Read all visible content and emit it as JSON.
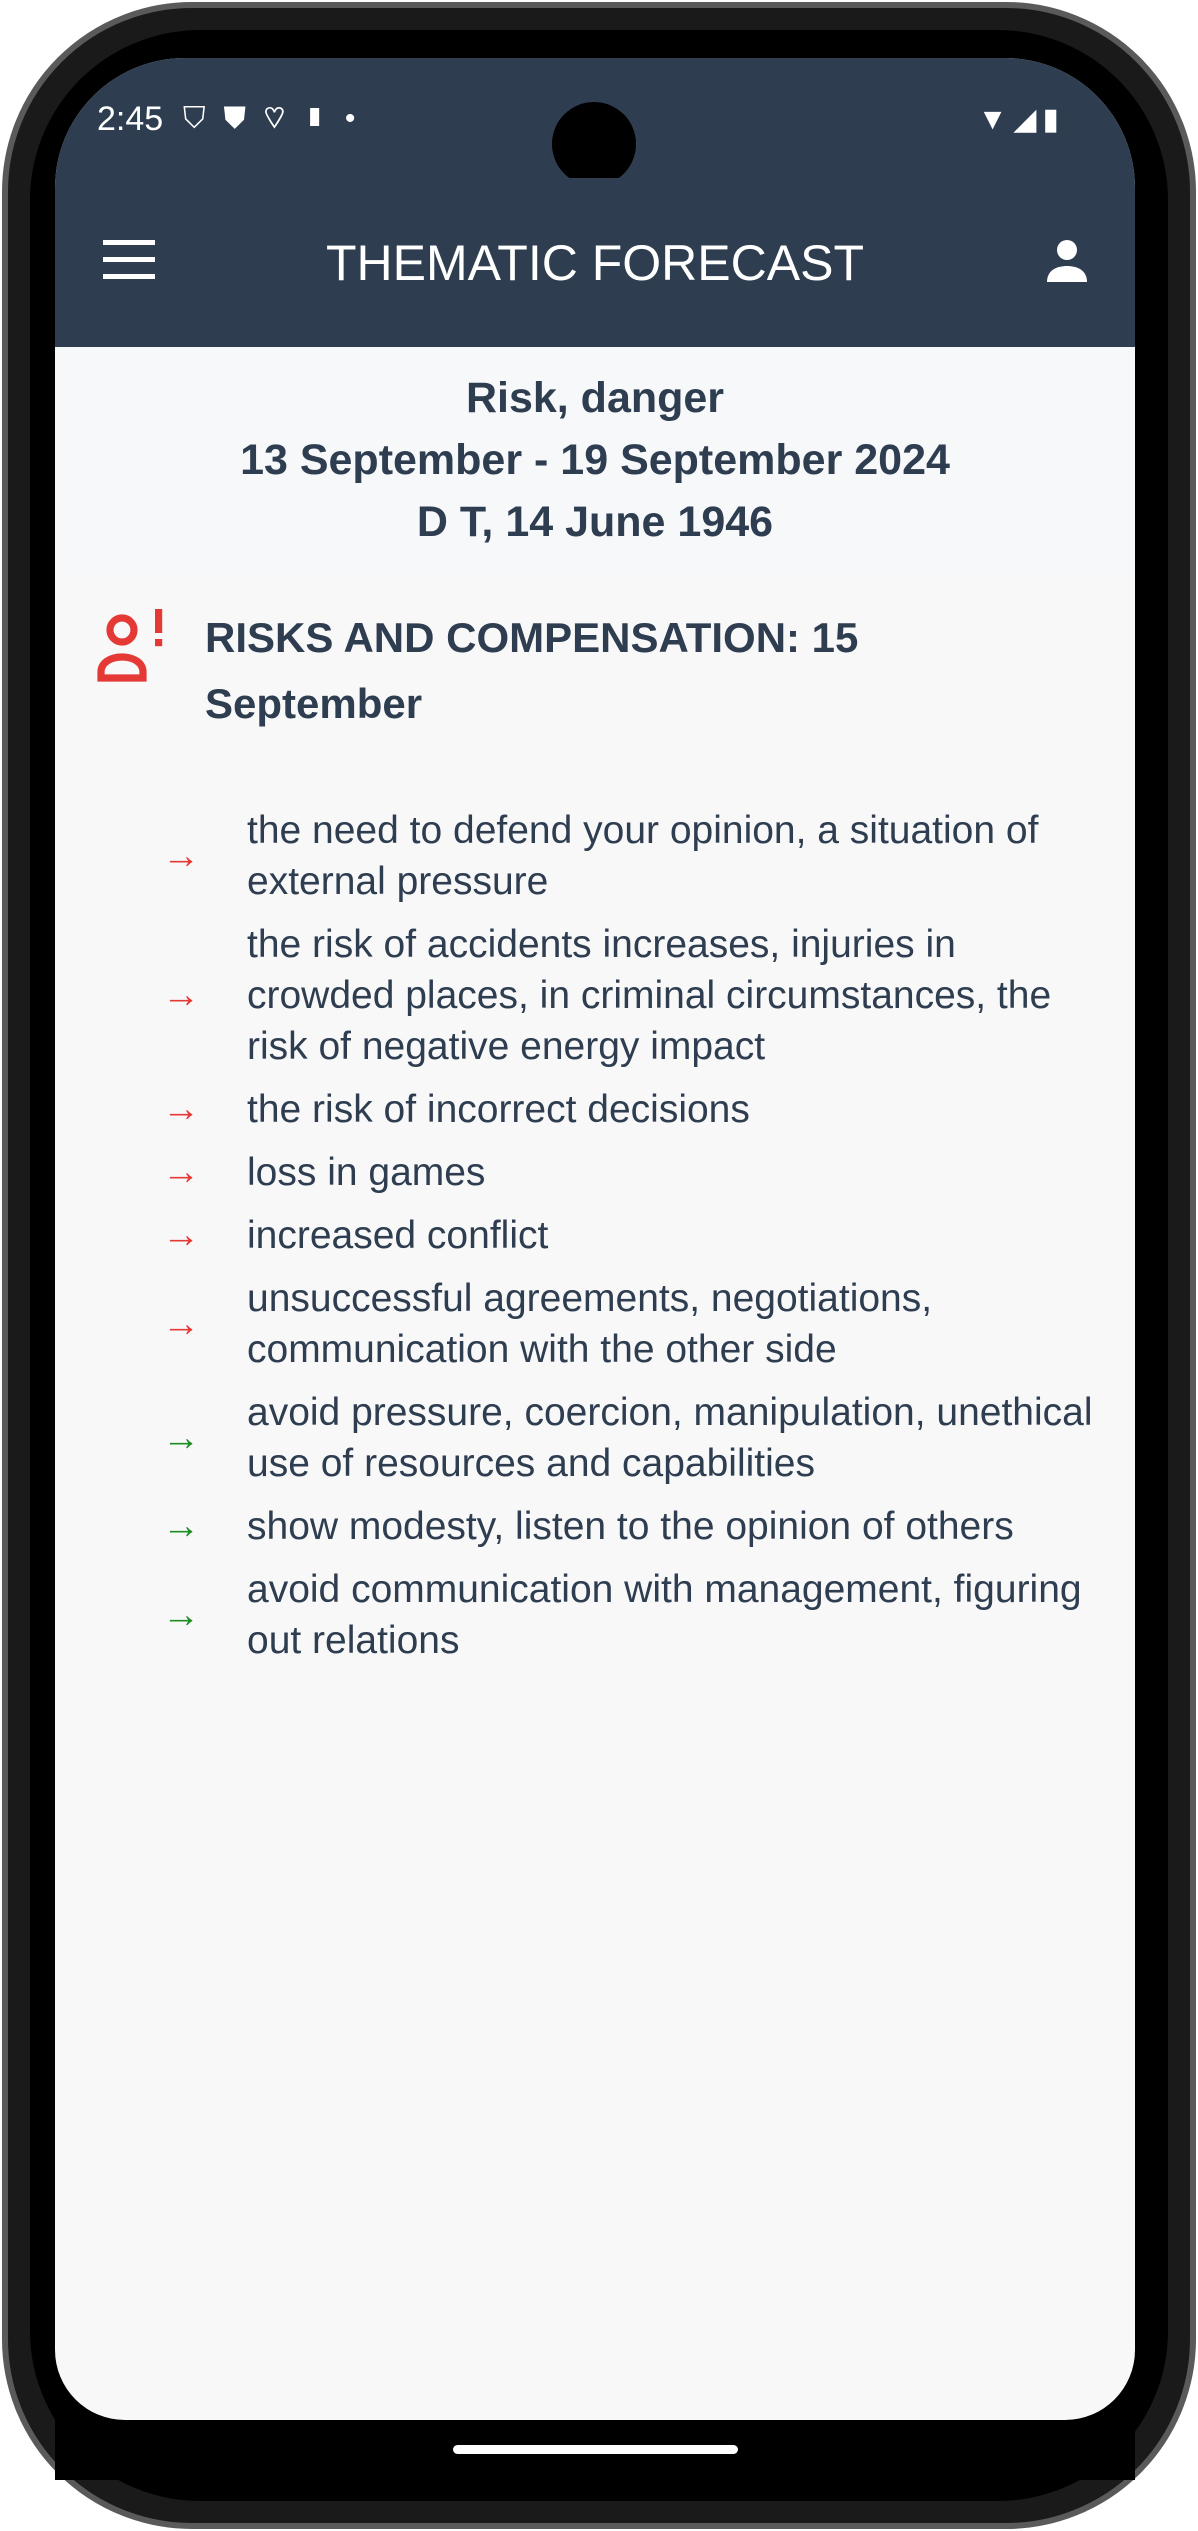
{
  "status_bar": {
    "time": "2:45"
  },
  "app_bar": {
    "title": "THEMATIC FORECAST"
  },
  "header": {
    "topic": "Risk, danger",
    "period": "13 September - 19 September 2024",
    "person": "D T, 14 June 1946"
  },
  "section": {
    "title": "RISKS AND COMPENSATION: 15 September"
  },
  "colors": {
    "risk": "#e53935",
    "advice": "#1e8e1e",
    "primary": "#2e3d50"
  },
  "items": [
    {
      "type": "risk",
      "text": "the need to defend your opinion, a situation of external pressure"
    },
    {
      "type": "risk",
      "text": "the risk of accidents increases, injuries in crowded places, in criminal circumstances, the risk of negative energy impact"
    },
    {
      "type": "risk",
      "text": "the risk of incorrect decisions"
    },
    {
      "type": "risk",
      "text": "loss in games"
    },
    {
      "type": "risk",
      "text": "increased conflict"
    },
    {
      "type": "risk",
      "text": "unsuccessful agreements, negotiations, communication with the other side"
    },
    {
      "type": "advice",
      "text": "avoid pressure, coercion, manipulation, unethical use of resources and capabilities"
    },
    {
      "type": "advice",
      "text": "show modesty, listen to the opinion of others"
    },
    {
      "type": "advice",
      "text": "avoid communication with management, figuring out relations"
    }
  ]
}
